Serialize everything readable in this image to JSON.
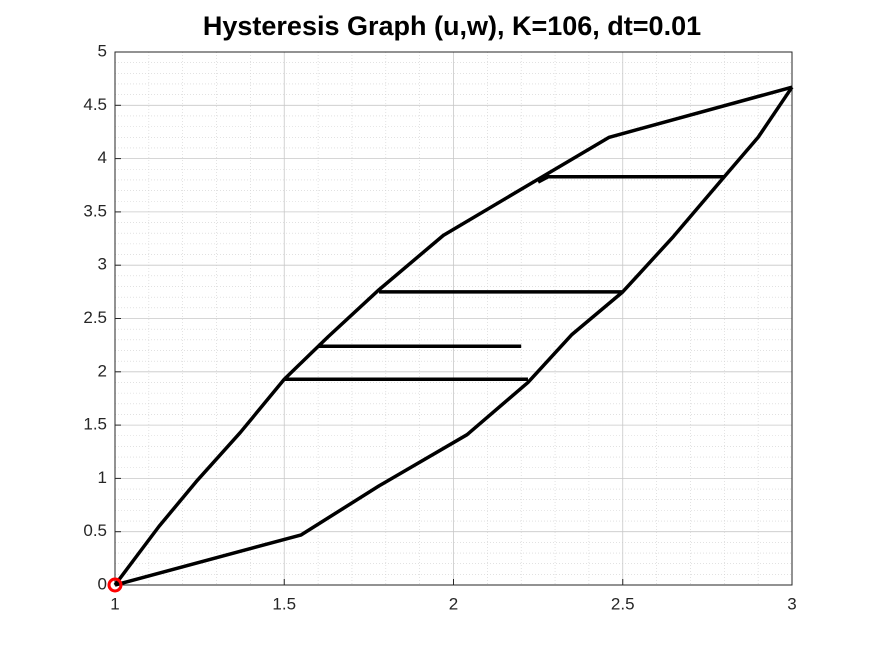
{
  "chart_data": {
    "type": "line",
    "title": "Hysteresis Graph (u,w), K=106, dt=0.01",
    "xlim": [
      1,
      3
    ],
    "ylim": [
      0,
      5
    ],
    "xticks": [
      1,
      1.5,
      2,
      2.5,
      3
    ],
    "yticks": [
      0,
      0.5,
      1,
      1.5,
      2,
      2.5,
      3,
      3.5,
      4,
      4.5,
      5
    ],
    "grid": true,
    "minor_grid": true,
    "series": [
      {
        "color": "#000000",
        "x": [
          1,
          1.13,
          1.24,
          1.37,
          1.5,
          1.63,
          1.78,
          1.97,
          2.22,
          2.46,
          3,
          null,
          1,
          1.55,
          1.78,
          2.04,
          2.22,
          2.35,
          2.5,
          2.65,
          2.8,
          2.9,
          3,
          null,
          1.5,
          2.22,
          null,
          1.6,
          2.2,
          null,
          1.78,
          2.5,
          null,
          2.25,
          2.28,
          2.8
        ],
        "values": [
          0,
          0.55,
          0.97,
          1.43,
          1.93,
          2.33,
          2.77,
          3.28,
          3.75,
          4.2,
          4.67,
          null,
          0,
          0.47,
          0.93,
          1.41,
          1.9,
          2.35,
          2.75,
          3.27,
          3.83,
          4.2,
          4.67,
          null,
          1.93,
          1.93,
          null,
          2.24,
          2.24,
          null,
          2.75,
          2.75,
          null,
          3.78,
          3.83,
          3.83
        ]
      },
      {
        "color": "#ff0000",
        "marker": "circle",
        "x": [
          1
        ],
        "values": [
          0
        ]
      }
    ]
  }
}
